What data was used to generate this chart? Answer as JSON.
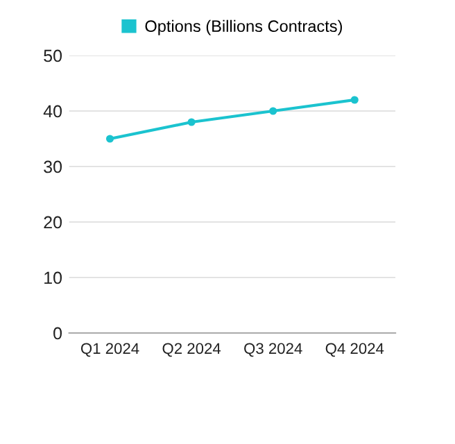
{
  "chart_data": {
    "type": "line",
    "categories": [
      "Q1 2024",
      "Q2 2024",
      "Q3 2024",
      "Q4 2024"
    ],
    "series": [
      {
        "name": "Options (Billions Contracts)",
        "color": "#1bc3cf",
        "values": [
          35,
          38,
          40,
          42
        ]
      }
    ],
    "ylim": [
      0,
      50
    ],
    "yticks": [
      0,
      10,
      20,
      30,
      40,
      50
    ],
    "grid": "y",
    "legend": "top",
    "marker": "circle",
    "line_style": "solid"
  }
}
